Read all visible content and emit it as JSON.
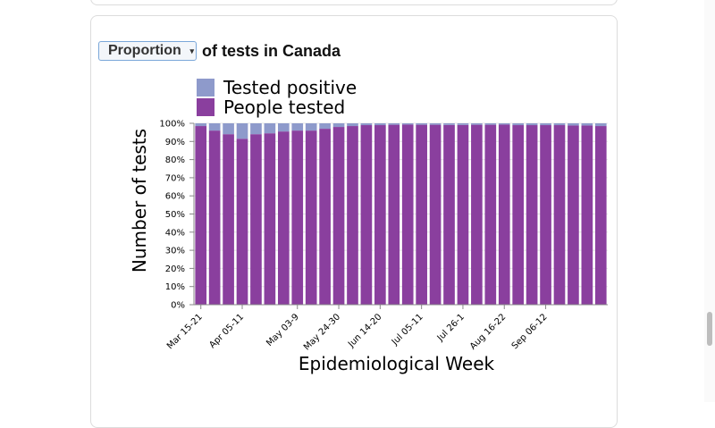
{
  "header": {
    "select_value": "Proportion",
    "title_suffix": "of tests in Canada"
  },
  "colors": {
    "tested_positive": "#8e9acb",
    "people_tested": "#8a3f9e"
  },
  "chart_data": {
    "type": "bar",
    "stacked": true,
    "xlabel": "Epidemiological Week",
    "ylabel": "Number of tests",
    "ylim": [
      0,
      100
    ],
    "y_ticks": [
      "0%",
      "10%",
      "20%",
      "30%",
      "40%",
      "50%",
      "60%",
      "70%",
      "80%",
      "90%",
      "100%"
    ],
    "x_tick_labels": [
      {
        "label": "Mar 15-21",
        "index": 0
      },
      {
        "label": "Apr 05-11",
        "index": 3
      },
      {
        "label": "May 03-9",
        "index": 7
      },
      {
        "label": "May 24-30",
        "index": 10
      },
      {
        "label": "Jun 14-20",
        "index": 13
      },
      {
        "label": "Jul 05-11",
        "index": 16
      },
      {
        "label": "Jul 26-1",
        "index": 19
      },
      {
        "label": "Aug 16-22",
        "index": 22
      },
      {
        "label": "Sep 06-12",
        "index": 25
      }
    ],
    "legend": [
      {
        "name": "Tested positive",
        "color": "#8e9acb"
      },
      {
        "name": "People tested",
        "color": "#8a3f9e"
      }
    ],
    "legend_position": "top-left",
    "grid": true,
    "series": [
      {
        "name": "People tested",
        "values": [
          98.5,
          96,
          94,
          91.5,
          94,
          94.5,
          95.5,
          96,
          96,
          97,
          98,
          98.5,
          99,
          99,
          99.2,
          99.3,
          99.2,
          99.2,
          99.1,
          99.1,
          99.2,
          99.2,
          99.3,
          99,
          99,
          99,
          99,
          98.8,
          98.8,
          98.5
        ]
      },
      {
        "name": "Tested positive",
        "values": [
          1.5,
          4,
          6,
          8.5,
          6,
          5.5,
          4.5,
          4,
          4,
          3,
          2,
          1.5,
          1,
          1,
          0.8,
          0.7,
          0.8,
          0.8,
          0.9,
          0.9,
          0.8,
          0.8,
          0.7,
          1,
          1,
          1,
          1,
          1.2,
          1.2,
          1.5
        ]
      }
    ]
  }
}
